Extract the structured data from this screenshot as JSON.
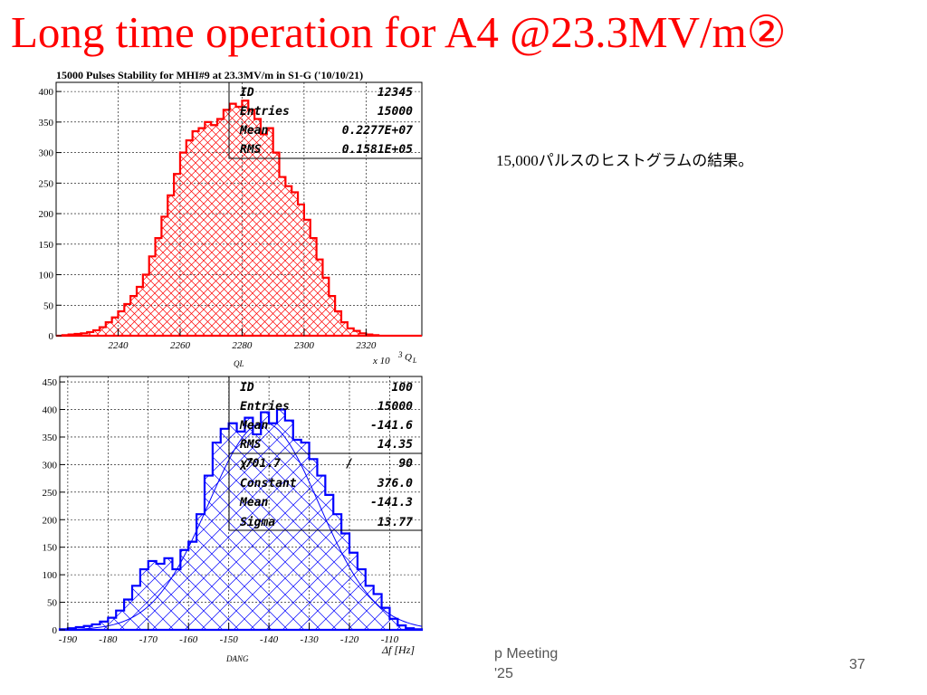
{
  "slide": {
    "title": "Long time operation for A4  @23.3MV/m②",
    "caption": "15,000パルスのヒストグラムの結果。",
    "footer_line1": "p Meeting",
    "footer_line2": "'25",
    "page_number": "37"
  },
  "colors": {
    "title": "#ff0000",
    "hist1": "#ff0000",
    "hist2": "#0000ff"
  },
  "chart_data": [
    {
      "type": "histogram",
      "title": "15000 Pulses Stability for MHI#9 at 23.3MV/m in S1-G ('10/10/21)",
      "xlabel": "x 10",
      "xlabel_sup": "3",
      "xlabel_q": "Q",
      "xlabel_sub": "L",
      "xvar": "QL",
      "xlim": [
        2220,
        2338
      ],
      "ylim": [
        0,
        415
      ],
      "xticks": [
        2240,
        2260,
        2280,
        2300,
        2320
      ],
      "yticks": [
        0,
        50,
        100,
        150,
        200,
        250,
        300,
        350,
        400
      ],
      "grid": true,
      "x": [
        2220,
        2222,
        2224,
        2226,
        2228,
        2230,
        2232,
        2234,
        2236,
        2238,
        2240,
        2242,
        2244,
        2246,
        2248,
        2250,
        2252,
        2254,
        2256,
        2258,
        2260,
        2262,
        2264,
        2266,
        2268,
        2270,
        2272,
        2274,
        2276,
        2278,
        2280,
        2282,
        2284,
        2286,
        2288,
        2290,
        2292,
        2294,
        2296,
        2298,
        2300,
        2302,
        2304,
        2306,
        2308,
        2310,
        2312,
        2314,
        2316,
        2318,
        2320,
        2322,
        2324,
        2326,
        2328,
        2330,
        2332,
        2334,
        2336
      ],
      "counts": [
        0,
        1,
        2,
        3,
        4,
        6,
        9,
        14,
        22,
        30,
        40,
        52,
        65,
        80,
        100,
        130,
        160,
        195,
        230,
        265,
        300,
        320,
        335,
        340,
        350,
        345,
        355,
        370,
        380,
        375,
        385,
        370,
        355,
        330,
        340,
        300,
        260,
        245,
        235,
        215,
        190,
        160,
        125,
        95,
        65,
        40,
        22,
        12,
        8,
        4,
        2,
        1,
        0,
        0,
        0,
        0,
        0,
        0,
        0
      ],
      "stats": [
        {
          "label": "ID",
          "value": "12345"
        },
        {
          "label": "Entries",
          "value": "15000"
        },
        {
          "label": "Mean",
          "value": "0.2277E+07"
        },
        {
          "label": "RMS",
          "value": "0.1581E+05"
        }
      ]
    },
    {
      "type": "histogram",
      "title": "",
      "xlabel": "Δf [Hz]",
      "xvar": "DANG",
      "xlim": [
        -192,
        -102
      ],
      "ylim": [
        0,
        460
      ],
      "xticks": [
        -190,
        -180,
        -170,
        -160,
        -150,
        -140,
        -130,
        -120,
        -110
      ],
      "yticks": [
        0,
        50,
        100,
        150,
        200,
        250,
        300,
        350,
        400,
        450
      ],
      "grid": true,
      "x": [
        -192,
        -190,
        -188,
        -186,
        -184,
        -182,
        -180,
        -178,
        -176,
        -174,
        -172,
        -170,
        -168,
        -166,
        -164,
        -162,
        -160,
        -158,
        -156,
        -154,
        -152,
        -150,
        -148,
        -146,
        -144,
        -142,
        -140,
        -138,
        -136,
        -134,
        -132,
        -130,
        -128,
        -126,
        -124,
        -122,
        -120,
        -118,
        -116,
        -114,
        -112,
        -110,
        -108,
        -106,
        -104
      ],
      "counts": [
        1,
        3,
        5,
        7,
        10,
        15,
        22,
        35,
        55,
        80,
        110,
        125,
        120,
        130,
        110,
        145,
        160,
        210,
        280,
        340,
        365,
        375,
        360,
        385,
        355,
        395,
        375,
        400,
        380,
        345,
        340,
        310,
        280,
        245,
        210,
        175,
        140,
        110,
        80,
        65,
        40,
        20,
        8,
        3,
        1
      ],
      "fit": {
        "constant": 376.0,
        "mean": -141.3,
        "sigma": 13.77
      },
      "stats": [
        {
          "label": "ID",
          "value": "100"
        },
        {
          "label": "Entries",
          "value": "15000"
        },
        {
          "label": "Mean",
          "value": "-141.6"
        },
        {
          "label": "RMS",
          "value": "14.35"
        }
      ],
      "fit_stats": [
        {
          "label": "χ²",
          "value": "701.7",
          "sep": "/",
          "ndf": "90"
        },
        {
          "label": "Constant",
          "value": "376.0"
        },
        {
          "label": "Mean",
          "value": "-141.3"
        },
        {
          "label": "Sigma",
          "value": "13.77"
        }
      ]
    }
  ]
}
